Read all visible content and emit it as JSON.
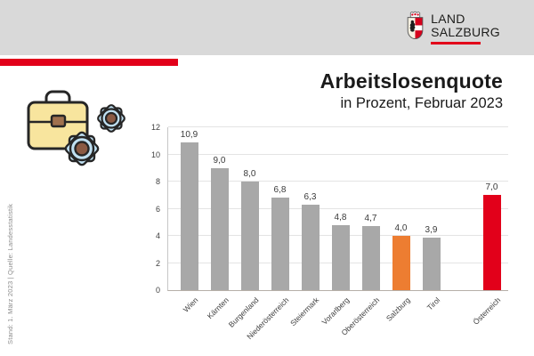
{
  "header": {
    "logo": {
      "line1": "LAND",
      "line2": "SALZBURG",
      "crest_icon": "salzburg-coat-of-arms-icon"
    }
  },
  "title": "Arbeitslosenquote",
  "subtitle": "in Prozent, Februar 2023",
  "source_note": "Stand: 1. März 2023 | Quelle: Landesstatistik",
  "pictogram_icon": "briefcase-with-gears-icon",
  "colors": {
    "accent_red": "#e2001a",
    "header_band": "#d9d9d9",
    "grid": "#e4e4e4",
    "bars": {
      "default": "#a8a8a8",
      "salzburg": "#ed7d31",
      "austria": "#e2001a"
    }
  },
  "chart_data": {
    "type": "bar",
    "title": "Arbeitslosenquote",
    "subtitle": "in Prozent, Februar 2023",
    "categories": [
      "Wien",
      "Kärnten",
      "Burgenland",
      "Niederösterreich",
      "Steiermark",
      "Vorarlberg",
      "Oberösterreich",
      "Salzburg",
      "Tirol",
      "Österreich"
    ],
    "values": [
      10.9,
      9.0,
      8.0,
      6.8,
      6.3,
      4.8,
      4.7,
      4.0,
      3.9,
      7.0
    ],
    "value_labels": [
      "10,9",
      "9,0",
      "8,0",
      "6,8",
      "6,3",
      "4,8",
      "4,7",
      "4,0",
      "3,9",
      "7,0"
    ],
    "bar_colors": [
      "default",
      "default",
      "default",
      "default",
      "default",
      "default",
      "default",
      "salzburg",
      "default",
      "austria"
    ],
    "slots": [
      0,
      1,
      2,
      3,
      4,
      5,
      6,
      7,
      8,
      10
    ],
    "xlabel": "",
    "ylabel": "",
    "ylim": [
      0,
      12
    ],
    "yticks": [
      0,
      2,
      4,
      6,
      8,
      10,
      12
    ],
    "grid": true,
    "legend": false,
    "note": "Österreich bar separated by an empty slot"
  }
}
